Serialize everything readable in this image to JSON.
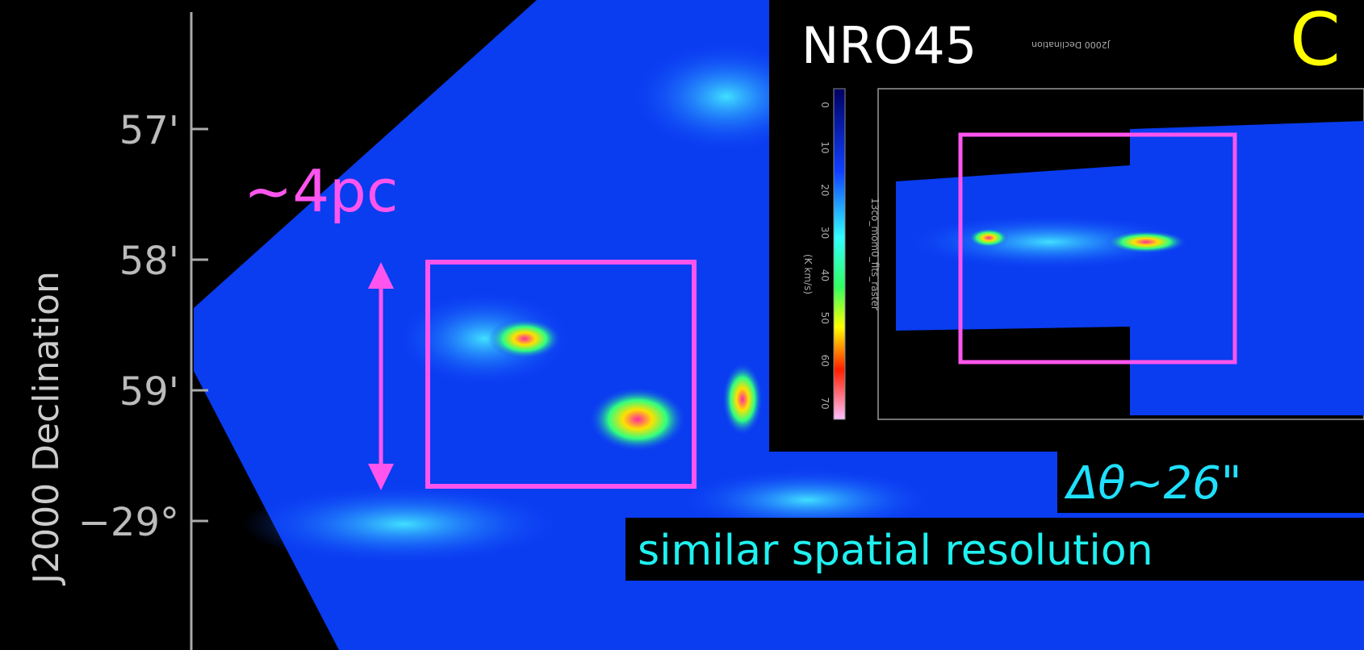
{
  "axis": {
    "ticks": [
      "57'",
      "58'",
      "59'",
      "−29°"
    ],
    "label": "J2000 Declination"
  },
  "main": {
    "scale_label": "~4pc"
  },
  "inset": {
    "title": "NRO45",
    "corner_label": "C",
    "colorbar_labels": [
      "0",
      "10",
      "20",
      "30",
      "40",
      "50",
      "60",
      "70"
    ],
    "colorbar_title": "(K km/s)",
    "file_label": "13co_mom0_fits_raster",
    "axis_label": "J2000 Declination"
  },
  "resolution": "Δθ~26\"",
  "footer": "similar spatial resolution"
}
